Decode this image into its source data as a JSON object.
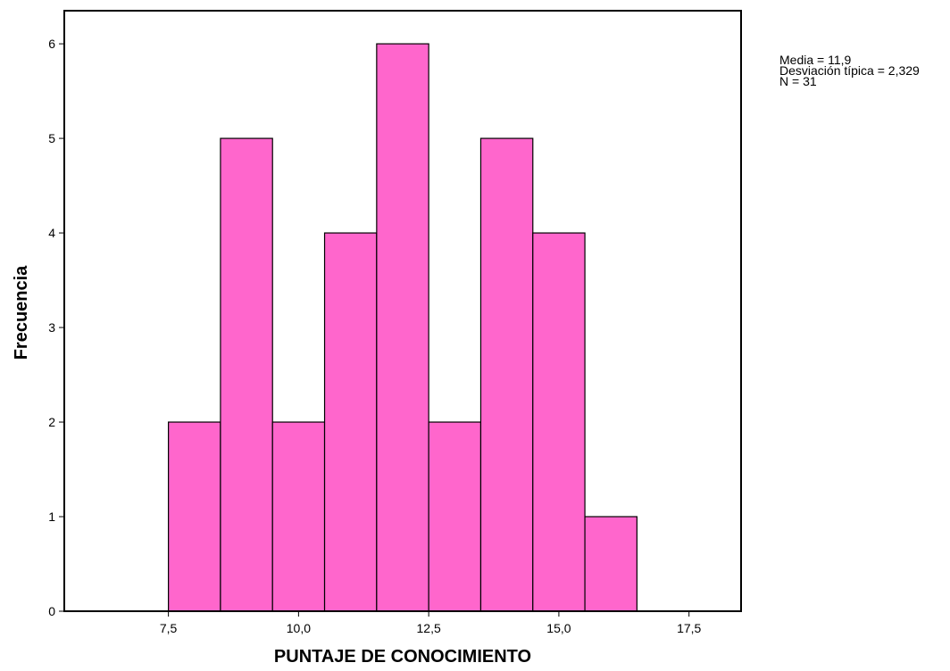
{
  "chart_data": {
    "type": "bar",
    "histogram": true,
    "bin_edges": [
      7.5,
      8.5,
      9.5,
      10.5,
      11.5,
      12.5,
      13.5,
      14.5,
      15.5,
      16.5
    ],
    "values": [
      2,
      5,
      2,
      4,
      6,
      2,
      5,
      4,
      1
    ],
    "xlabel": "PUNTAJE DE CONOCIMIENTO",
    "ylabel": "Frecuencia",
    "xlim": [
      5.5,
      18.5
    ],
    "ylim": [
      0,
      6.35
    ],
    "x_ticks": [
      {
        "value": 7.5,
        "label": "7,5"
      },
      {
        "value": 10.0,
        "label": "10,0"
      },
      {
        "value": 12.5,
        "label": "12,5"
      },
      {
        "value": 15.0,
        "label": "15,0"
      },
      {
        "value": 17.5,
        "label": "17,5"
      }
    ],
    "y_ticks": [
      {
        "value": 0,
        "label": "0"
      },
      {
        "value": 1,
        "label": "1"
      },
      {
        "value": 2,
        "label": "2"
      },
      {
        "value": 3,
        "label": "3"
      },
      {
        "value": 4,
        "label": "4"
      },
      {
        "value": 5,
        "label": "5"
      },
      {
        "value": 6,
        "label": "6"
      }
    ],
    "grid": false,
    "bar_color": "#ff66cc",
    "edge_color": "#000000"
  },
  "stats": {
    "mean": "Media = 11,9",
    "std": "Desviación típica = 2,329",
    "n": "N = 31"
  }
}
